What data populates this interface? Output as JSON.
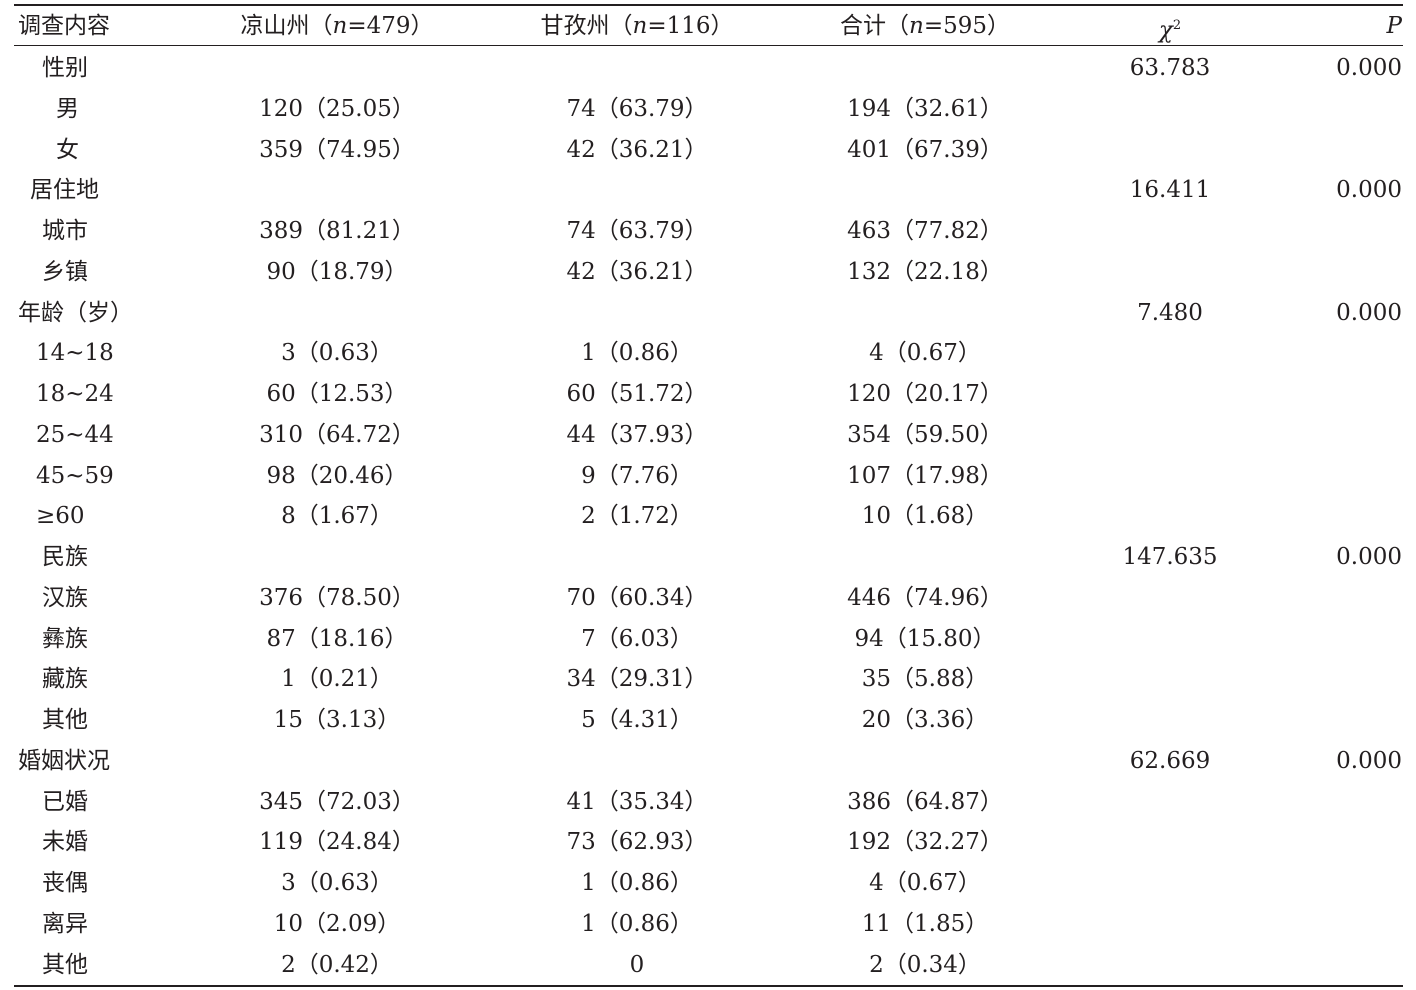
{
  "header": {
    "col0": "调查内容",
    "col1_pre": "凉山州（",
    "col1_n": "n",
    "col1_post": "=479）",
    "col2_pre": "甘孜州（",
    "col2_n": "n",
    "col2_post": "=116）",
    "col3_pre": "合计（",
    "col3_n": "n",
    "col3_post": "=595）",
    "col4_base": "χ",
    "col4_sup": "2",
    "col5": "P"
  },
  "rows": [
    {
      "label": "性别",
      "a": "",
      "b": "",
      "c": "",
      "chi": "63.783",
      "p": "0.000"
    },
    {
      "label": "男",
      "a": "120（25.05）",
      "b": "74（63.79）",
      "c": "194（32.61）",
      "chi": "",
      "p": ""
    },
    {
      "label": "女",
      "a": "359（74.95）",
      "b": "42（36.21）",
      "c": "401（67.39）",
      "chi": "",
      "p": ""
    },
    {
      "label": "居住地",
      "a": "",
      "b": "",
      "c": "",
      "chi": "16.411",
      "p": "0.000"
    },
    {
      "label": "城市",
      "a": "389（81.21）",
      "b": "74（63.79）",
      "c": "463（77.82）",
      "chi": "",
      "p": ""
    },
    {
      "label": "乡镇",
      "a": "90（18.79）",
      "b": "42（36.21）",
      "c": "132（22.18）",
      "chi": "",
      "p": ""
    },
    {
      "label": "年龄（岁）",
      "a": "",
      "b": "",
      "c": "",
      "chi": "7.480",
      "p": "0.000"
    },
    {
      "label": "14~18",
      "a": "3（0.63）",
      "b": "1（0.86）",
      "c": "4（0.67）",
      "chi": "",
      "p": ""
    },
    {
      "label": "18~24",
      "a": "60（12.53）",
      "b": "60（51.72）",
      "c": "120（20.17）",
      "chi": "",
      "p": ""
    },
    {
      "label": "25~44",
      "a": "310（64.72）",
      "b": "44（37.93）",
      "c": "354（59.50）",
      "chi": "",
      "p": ""
    },
    {
      "label": "45~59",
      "a": "98（20.46）",
      "b": "9（7.76）",
      "c": "107（17.98）",
      "chi": "",
      "p": ""
    },
    {
      "label": "≥60",
      "a": "8（1.67）",
      "b": "2（1.72）",
      "c": "10（1.68）",
      "chi": "",
      "p": ""
    },
    {
      "label": "民族",
      "a": "",
      "b": "",
      "c": "",
      "chi": "147.635",
      "p": "0.000"
    },
    {
      "label": "汉族",
      "a": "376（78.50）",
      "b": "70（60.34）",
      "c": "446（74.96）",
      "chi": "",
      "p": ""
    },
    {
      "label": "彝族",
      "a": "87（18.16）",
      "b": "7（6.03）",
      "c": "94（15.80）",
      "chi": "",
      "p": ""
    },
    {
      "label": "藏族",
      "a": "1（0.21）",
      "b": "34（29.31）",
      "c": "35（5.88）",
      "chi": "",
      "p": ""
    },
    {
      "label": "其他",
      "a": "15（3.13）",
      "b": "5（4.31）",
      "c": "20（3.36）",
      "chi": "",
      "p": ""
    },
    {
      "label": "婚姻状况",
      "a": "",
      "b": "",
      "c": "",
      "chi": "62.669",
      "p": "0.000"
    },
    {
      "label": "已婚",
      "a": "345（72.03）",
      "b": "41（35.34）",
      "c": "386（64.87）",
      "chi": "",
      "p": ""
    },
    {
      "label": "未婚",
      "a": "119（24.84）",
      "b": "73（62.93）",
      "c": "192（32.27）",
      "chi": "",
      "p": ""
    },
    {
      "label": "丧偶",
      "a": "3（0.63）",
      "b": "1（0.86）",
      "c": "4（0.67）",
      "chi": "",
      "p": ""
    },
    {
      "label": "离异",
      "a": "10（2.09）",
      "b": "1（0.86）",
      "c": "11（1.85）",
      "chi": "",
      "p": ""
    },
    {
      "label": "其他",
      "a": "2（0.42）",
      "b": "0",
      "c": "2（0.34）",
      "chi": "",
      "p": ""
    }
  ]
}
